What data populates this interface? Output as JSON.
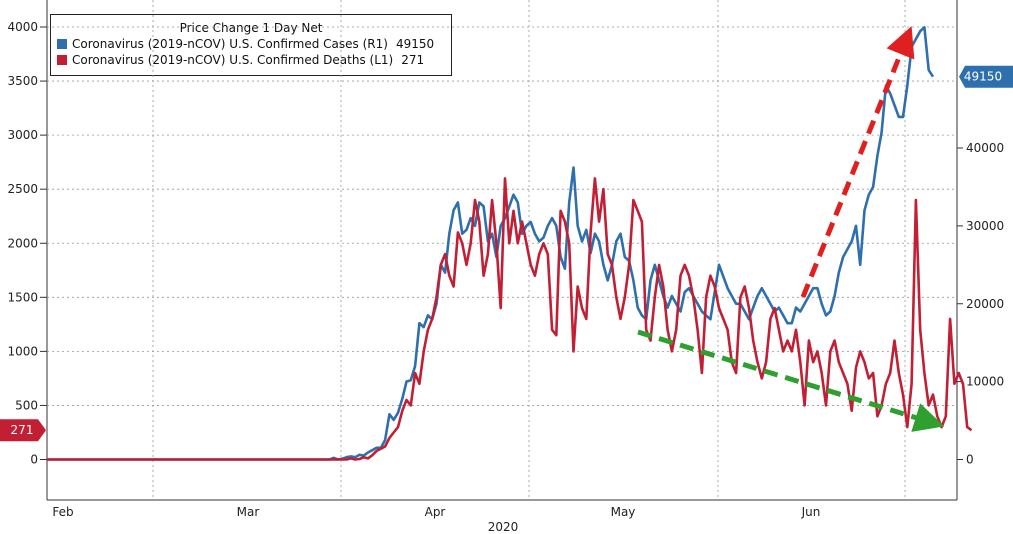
{
  "chart_data": {
    "type": "line",
    "title": "Price Change 1 Day Net",
    "xlabel": "2020",
    "x_ticks": [
      "Feb",
      "Mar",
      "Apr",
      "May",
      "Jun"
    ],
    "y_left": {
      "label": "",
      "ticks": [
        0,
        500,
        1000,
        1500,
        2000,
        2500,
        3000,
        3500,
        4000
      ],
      "range": [
        -375,
        4000
      ]
    },
    "y_right": {
      "label": "",
      "ticks": [
        0,
        10000,
        20000,
        30000,
        40000
      ],
      "range": [
        -5000,
        58000
      ]
    },
    "legend_position": "top-left",
    "grid": true,
    "series": [
      {
        "name": "Coronavirus (2019-nCOV) U.S. Confirmed Cases (R1)",
        "axis": "right",
        "color": "#2e6fae",
        "last_value_label": "49150",
        "start_date": "2020-01-22",
        "values": [
          0,
          0,
          0,
          0,
          0,
          0,
          0,
          0,
          0,
          0,
          0,
          0,
          0,
          0,
          0,
          0,
          0,
          0,
          0,
          0,
          0,
          0,
          0,
          0,
          0,
          0,
          0,
          0,
          0,
          0,
          0,
          0,
          0,
          0,
          0,
          0,
          0,
          0,
          0,
          0,
          0,
          0,
          0,
          0,
          0,
          0,
          0,
          0,
          0,
          0,
          0,
          0,
          0,
          0,
          0,
          0,
          0,
          0,
          0,
          0,
          0,
          0,
          0,
          0,
          0,
          0,
          0,
          200,
          0,
          100,
          300,
          400,
          300,
          600,
          500,
          900,
          1200,
          1500,
          1500,
          2500,
          5800,
          5100,
          6000,
          7800,
          10000,
          10200,
          12000,
          17500,
          17000,
          18500,
          18000,
          20000,
          25000,
          24000,
          29000,
          32000,
          33000,
          29000,
          29500,
          31000,
          30000,
          33000,
          32500,
          28000,
          29000,
          26000,
          30000,
          31000,
          32500,
          34000,
          33000,
          29000,
          30000,
          30500,
          29000,
          28000,
          28500,
          30000,
          31000,
          30000,
          26000,
          24500,
          33000,
          37500,
          30000,
          28000,
          29500,
          26500,
          29000,
          28000,
          25000,
          23000,
          25000,
          28000,
          29000,
          26000,
          25500,
          23000,
          19500,
          18500,
          18000,
          23000,
          25000,
          23000,
          21000,
          19500,
          21000,
          20000,
          19000,
          21500,
          22000,
          21000,
          20000,
          19000,
          18500,
          18000,
          21500,
          25000,
          23500,
          22000,
          21000,
          20000,
          20000,
          19000,
          18000,
          19500,
          21000,
          22000,
          21000,
          20000,
          19000,
          19500,
          18500,
          17500,
          17500,
          19500,
          19000,
          20000,
          21000,
          22000,
          22000,
          20000,
          18500,
          19000,
          21000,
          24000,
          26000,
          27000,
          28000,
          30000,
          25000,
          32000,
          34000,
          35000,
          39000,
          42000,
          48000,
          47000,
          45500,
          44000,
          44000,
          48000,
          53000,
          54000,
          55000,
          55500,
          50000,
          49150
        ]
      },
      {
        "name": "Coronavirus (2019-nCOV) U.S. Confirmed Deaths (L1)",
        "axis": "left",
        "color": "#c21f35",
        "last_value_label": "271",
        "start_date": "2020-01-22",
        "values": [
          0,
          0,
          0,
          0,
          0,
          0,
          0,
          0,
          0,
          0,
          0,
          0,
          0,
          0,
          0,
          0,
          0,
          0,
          0,
          0,
          0,
          0,
          0,
          0,
          0,
          0,
          0,
          0,
          0,
          0,
          0,
          0,
          0,
          0,
          0,
          0,
          0,
          0,
          0,
          0,
          0,
          0,
          0,
          0,
          0,
          0,
          0,
          0,
          0,
          0,
          0,
          0,
          0,
          0,
          0,
          0,
          0,
          0,
          0,
          0,
          0,
          0,
          0,
          0,
          0,
          0,
          0,
          0,
          0,
          0,
          0,
          10,
          0,
          5,
          20,
          10,
          40,
          80,
          100,
          120,
          200,
          250,
          300,
          450,
          550,
          500,
          800,
          700,
          1000,
          1200,
          1300,
          1500,
          1800,
          1900,
          1700,
          1600,
          2100,
          2000,
          1800,
          2000,
          2400,
          2200,
          1700,
          1900,
          2400,
          2000,
          1400,
          2600,
          2000,
          2300,
          2000,
          2200,
          2000,
          1800,
          1700,
          1900,
          2000,
          1900,
          1200,
          1150,
          2300,
          2200,
          2000,
          1000,
          1600,
          1400,
          1300,
          2100,
          2600,
          2200,
          2500,
          1900,
          1800,
          1500,
          1300,
          1500,
          1800,
          2400,
          2300,
          2200,
          1200,
          1100,
          1500,
          1800,
          1600,
          1200,
          1000,
          1200,
          1700,
          1800,
          1700,
          1500,
          1200,
          800,
          1500,
          1700,
          1600,
          1400,
          1300,
          1200,
          900,
          800,
          1500,
          1600,
          1400,
          1100,
          900,
          750,
          900,
          1300,
          1400,
          1200,
          1000,
          1100,
          1000,
          1200,
          900,
          500,
          1100,
          900,
          1000,
          800,
          500,
          1000,
          1100,
          900,
          800,
          700,
          450,
          850,
          1000,
          900,
          750,
          800,
          400,
          500,
          700,
          800,
          1100,
          800,
          600,
          300,
          700,
          2400,
          1200,
          800,
          500,
          600,
          400,
          300,
          400,
          1300,
          700,
          800,
          700,
          300,
          271
        ]
      }
    ],
    "annotations": [
      {
        "type": "arrow",
        "color": "#e02020",
        "style": "dashed",
        "description": "upward trend"
      },
      {
        "type": "arrow",
        "color": "#2fa02f",
        "style": "dashed",
        "description": "downward trend"
      }
    ]
  }
}
